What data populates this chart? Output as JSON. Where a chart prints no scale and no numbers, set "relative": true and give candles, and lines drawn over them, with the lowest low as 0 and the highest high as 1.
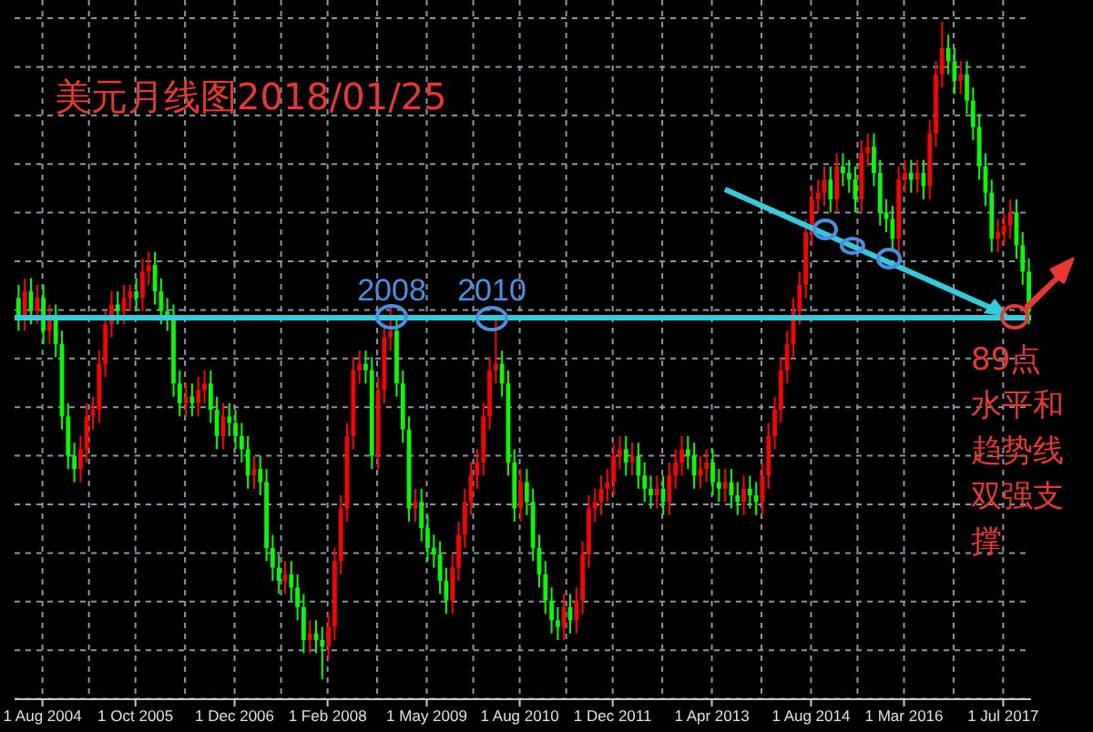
{
  "chart_data": {
    "type": "candlestick",
    "title": "美元月线图2018/01/25",
    "relative": true,
    "grid": true,
    "colors": [
      "#00ff00",
      "#ff0000",
      "#00ff00",
      "#ff0000",
      "#00ff00",
      "#ff0000",
      "#00ff00",
      "#00ff00",
      "#00ff00",
      "#00ff00",
      "#ff0000",
      "#ff0000",
      "#ff0000",
      "#ff0000",
      "#ff0000",
      "#ff0000",
      "#00ff00",
      "#ff0000",
      "#ff0000",
      "#00ff00",
      "#ff0000",
      "#ff0000",
      "#00ff00",
      "#00ff00",
      "#00ff00",
      "#00ff00",
      "#00ff00",
      "#ff0000",
      "#00ff00",
      "#ff0000",
      "#ff0000",
      "#00ff00",
      "#00ff00",
      "#ff0000",
      "#00ff00",
      "#00ff00",
      "#00ff00",
      "#00ff00",
      "#ff0000",
      "#00ff00",
      "#00ff00",
      "#00ff00",
      "#00ff00",
      "#ff0000",
      "#00ff00",
      "#00ff00",
      "#00ff00",
      "#ff0000",
      "#00ff00",
      "#00ff00",
      "#ff0000",
      "#ff0000",
      "#ff0000",
      "#ff0000",
      "#ff0000",
      "#ff0000",
      "#00ff00",
      "#00ff00",
      "#ff0000",
      "#ff0000",
      "#ff0000",
      "#00ff00",
      "#00ff00",
      "#00ff00",
      "#ff0000",
      "#00ff00",
      "#00ff00",
      "#00ff00",
      "#00ff00",
      "#00ff00",
      "#ff0000",
      "#ff0000",
      "#ff0000",
      "#ff0000",
      "#ff0000",
      "#ff0000",
      "#ff0000",
      "#ff0000",
      "#00ff00",
      "#00ff00",
      "#00ff00",
      "#ff0000",
      "#00ff00",
      "#00ff00",
      "#00ff00",
      "#00ff00",
      "#00ff00",
      "#00ff00",
      "#ff0000",
      "#00ff00",
      "#ff0000",
      "#ff0000",
      "#ff0000",
      "#ff0000",
      "#ff0000",
      "#ff0000",
      "#ff0000",
      "#ff0000",
      "#00ff00",
      "#ff0000",
      "#00ff00",
      "#00ff00",
      "#00ff00",
      "#ff0000",
      "#00ff00",
      "#ff0000",
      "#ff0000",
      "#ff0000",
      "#00ff00",
      "#00ff00",
      "#ff0000",
      "#ff0000",
      "#00ff00",
      "#00ff00",
      "#ff0000",
      "#00ff00",
      "#00ff00",
      "#ff0000",
      "#00ff00",
      "#00ff00",
      "#ff0000",
      "#ff0000",
      "#ff0000",
      "#ff0000",
      "#ff0000",
      "#ff0000",
      "#ff0000",
      "#ff0000",
      "#ff0000",
      "#ff0000",
      "#ff0000",
      "#00ff00",
      "#ff0000",
      "#00ff00",
      "#00ff00",
      "#00ff00",
      "#ff0000",
      "#ff0000",
      "#00ff00",
      "#00ff00",
      "#00ff00",
      "#00ff00",
      "#ff0000",
      "#ff0000",
      "#00ff00",
      "#ff0000",
      "#00ff00",
      "#ff0000",
      "#ff0000",
      "#ff0000",
      "#00ff00",
      "#00ff00",
      "#ff0000",
      "#00ff00",
      "#00ff00",
      "#00ff00",
      "#00ff00",
      "#00ff00",
      "#ff0000",
      "#ff0000",
      "#ff0000",
      "#00ff00",
      "#00ff00",
      "#00ff00"
    ],
    "ref_lines": [
      {
        "axis": "y",
        "value": 0.55,
        "color": "#33ccdd"
      }
    ],
    "annotations": [
      "2008",
      "2010",
      "89点水平和趋势线双强支撑"
    ],
    "categories": [
      null,
      null,
      null,
      null,
      "1 Aug 2004",
      null,
      null,
      null,
      null,
      null,
      null,
      null,
      null,
      null,
      null,
      null,
      null,
      null,
      null,
      "1 Oct 2005",
      null,
      null,
      null,
      null,
      null,
      null,
      null,
      null,
      null,
      null,
      null,
      null,
      null,
      null,
      null,
      "1 Dec 2006",
      null,
      null,
      null,
      null,
      null,
      null,
      null,
      null,
      null,
      null,
      null,
      null,
      null,
      null,
      "1 Feb 2008",
      null,
      null,
      null,
      null,
      null,
      null,
      null,
      null,
      null,
      null,
      null,
      null,
      null,
      null,
      null,
      "1 May 2009",
      null,
      null,
      null,
      null,
      null,
      null,
      null,
      null,
      null,
      null,
      null,
      null,
      null,
      null,
      "1 Aug 2010",
      null,
      null,
      null,
      null,
      null,
      null,
      null,
      null,
      null,
      null,
      null,
      null,
      null,
      null,
      "1 Dec 2011",
      null,
      null,
      null,
      null,
      null,
      null,
      null,
      null,
      null,
      null,
      null,
      null,
      null,
      null,
      null,
      "1 Apr 2013",
      null,
      null,
      null,
      null,
      null,
      null,
      null,
      null,
      null,
      null,
      null,
      null,
      null,
      null,
      null,
      "1 Aug 2014",
      null,
      null,
      null,
      null,
      null,
      null,
      null,
      null,
      null,
      null,
      null,
      null,
      null,
      null,
      "1 Mar 2016",
      null,
      null,
      null,
      null,
      null,
      null,
      null,
      null,
      null,
      null,
      null,
      null,
      null,
      null,
      null,
      "1 Jul 2017",
      null,
      null,
      null,
      null
    ],
    "ohlc": [
      [
        0.58,
        0.6,
        0.53,
        0.55
      ],
      [
        0.55,
        0.61,
        0.53,
        0.59
      ],
      [
        0.59,
        0.61,
        0.54,
        0.56
      ],
      [
        0.56,
        0.6,
        0.54,
        0.58
      ],
      [
        0.58,
        0.6,
        0.51,
        0.53
      ],
      [
        0.53,
        0.57,
        0.51,
        0.55
      ],
      [
        0.55,
        0.57,
        0.49,
        0.51
      ],
      [
        0.51,
        0.53,
        0.38,
        0.4
      ],
      [
        0.4,
        0.42,
        0.32,
        0.34
      ],
      [
        0.34,
        0.36,
        0.3,
        0.32
      ],
      [
        0.32,
        0.37,
        0.3,
        0.35
      ],
      [
        0.35,
        0.42,
        0.33,
        0.4
      ],
      [
        0.4,
        0.43,
        0.38,
        0.41
      ],
      [
        0.41,
        0.5,
        0.39,
        0.48
      ],
      [
        0.48,
        0.56,
        0.46,
        0.54
      ],
      [
        0.54,
        0.59,
        0.52,
        0.57
      ],
      [
        0.57,
        0.59,
        0.54,
        0.56
      ],
      [
        0.56,
        0.6,
        0.54,
        0.58
      ],
      [
        0.58,
        0.6,
        0.56,
        0.59
      ],
      [
        0.59,
        0.61,
        0.56,
        0.58
      ],
      [
        0.58,
        0.64,
        0.56,
        0.62
      ],
      [
        0.62,
        0.65,
        0.6,
        0.63
      ],
      [
        0.63,
        0.65,
        0.57,
        0.59
      ],
      [
        0.59,
        0.61,
        0.54,
        0.56
      ],
      [
        0.56,
        0.58,
        0.53,
        0.55
      ],
      [
        0.55,
        0.57,
        0.43,
        0.45
      ],
      [
        0.45,
        0.47,
        0.4,
        0.42
      ],
      [
        0.42,
        0.45,
        0.4,
        0.43
      ],
      [
        0.43,
        0.45,
        0.4,
        0.42
      ],
      [
        0.42,
        0.46,
        0.4,
        0.44
      ],
      [
        0.44,
        0.47,
        0.42,
        0.45
      ],
      [
        0.45,
        0.47,
        0.39,
        0.41
      ],
      [
        0.41,
        0.43,
        0.35,
        0.37
      ],
      [
        0.37,
        0.42,
        0.35,
        0.4
      ],
      [
        0.4,
        0.42,
        0.37,
        0.39
      ],
      [
        0.39,
        0.41,
        0.35,
        0.37
      ],
      [
        0.37,
        0.39,
        0.33,
        0.35
      ],
      [
        0.35,
        0.37,
        0.29,
        0.31
      ],
      [
        0.31,
        0.34,
        0.29,
        0.32
      ],
      [
        0.32,
        0.34,
        0.28,
        0.3
      ],
      [
        0.3,
        0.32,
        0.18,
        0.2
      ],
      [
        0.2,
        0.22,
        0.15,
        0.17
      ],
      [
        0.17,
        0.19,
        0.13,
        0.15
      ],
      [
        0.15,
        0.18,
        0.13,
        0.16
      ],
      [
        0.16,
        0.18,
        0.12,
        0.14
      ],
      [
        0.14,
        0.16,
        0.09,
        0.11
      ],
      [
        0.11,
        0.13,
        0.04,
        0.06
      ],
      [
        0.06,
        0.09,
        0.04,
        0.07
      ],
      [
        0.07,
        0.09,
        0.04,
        0.06
      ],
      [
        0.06,
        0.08,
        0,
        0.05
      ],
      [
        0.05,
        0.1,
        0.03,
        0.08
      ],
      [
        0.08,
        0.2,
        0.06,
        0.18
      ],
      [
        0.18,
        0.28,
        0.16,
        0.26
      ],
      [
        0.26,
        0.39,
        0.24,
        0.37
      ],
      [
        0.37,
        0.49,
        0.35,
        0.47
      ],
      [
        0.47,
        0.5,
        0.45,
        0.48
      ],
      [
        0.48,
        0.5,
        0.45,
        0.47
      ],
      [
        0.47,
        0.49,
        0.32,
        0.34
      ],
      [
        0.34,
        0.46,
        0.32,
        0.44
      ],
      [
        0.44,
        0.54,
        0.42,
        0.52
      ],
      [
        0.52,
        0.57,
        0.5,
        0.53
      ],
      [
        0.53,
        0.55,
        0.43,
        0.45
      ],
      [
        0.45,
        0.47,
        0.36,
        0.38
      ],
      [
        0.38,
        0.4,
        0.24,
        0.26
      ],
      [
        0.26,
        0.29,
        0.24,
        0.27
      ],
      [
        0.27,
        0.29,
        0.21,
        0.23
      ],
      [
        0.23,
        0.25,
        0.18,
        0.2
      ],
      [
        0.2,
        0.22,
        0.17,
        0.19
      ],
      [
        0.19,
        0.21,
        0.13,
        0.15
      ],
      [
        0.15,
        0.17,
        0.1,
        0.12
      ],
      [
        0.12,
        0.19,
        0.1,
        0.17
      ],
      [
        0.17,
        0.24,
        0.15,
        0.22
      ],
      [
        0.22,
        0.29,
        0.2,
        0.27
      ],
      [
        0.27,
        0.33,
        0.25,
        0.31
      ],
      [
        0.31,
        0.35,
        0.29,
        0.33
      ],
      [
        0.33,
        0.42,
        0.31,
        0.4
      ],
      [
        0.4,
        0.49,
        0.38,
        0.47
      ],
      [
        0.47,
        0.55,
        0.45,
        0.48
      ],
      [
        0.48,
        0.5,
        0.43,
        0.45
      ],
      [
        0.45,
        0.47,
        0.31,
        0.33
      ],
      [
        0.33,
        0.35,
        0.24,
        0.26
      ],
      [
        0.26,
        0.32,
        0.24,
        0.3
      ],
      [
        0.3,
        0.32,
        0.25,
        0.27
      ],
      [
        0.27,
        0.29,
        0.18,
        0.2
      ],
      [
        0.2,
        0.22,
        0.14,
        0.16
      ],
      [
        0.16,
        0.18,
        0.1,
        0.12
      ],
      [
        0.12,
        0.14,
        0.07,
        0.09
      ],
      [
        0.09,
        0.11,
        0.06,
        0.08
      ],
      [
        0.08,
        0.13,
        0.06,
        0.11
      ],
      [
        0.11,
        0.13,
        0.07,
        0.09
      ],
      [
        0.09,
        0.14,
        0.07,
        0.12
      ],
      [
        0.12,
        0.21,
        0.1,
        0.19
      ],
      [
        0.19,
        0.28,
        0.17,
        0.26
      ],
      [
        0.26,
        0.29,
        0.24,
        0.27
      ],
      [
        0.27,
        0.31,
        0.25,
        0.29
      ],
      [
        0.29,
        0.32,
        0.27,
        0.3
      ],
      [
        0.3,
        0.36,
        0.28,
        0.34
      ],
      [
        0.34,
        0.37,
        0.32,
        0.35
      ],
      [
        0.35,
        0.37,
        0.31,
        0.33
      ],
      [
        0.33,
        0.36,
        0.31,
        0.34
      ],
      [
        0.34,
        0.36,
        0.29,
        0.31
      ],
      [
        0.31,
        0.33,
        0.27,
        0.29
      ],
      [
        0.29,
        0.31,
        0.26,
        0.28
      ],
      [
        0.28,
        0.31,
        0.26,
        0.29
      ],
      [
        0.29,
        0.31,
        0.25,
        0.27
      ],
      [
        0.27,
        0.33,
        0.25,
        0.31
      ],
      [
        0.31,
        0.35,
        0.29,
        0.33
      ],
      [
        0.33,
        0.37,
        0.31,
        0.35
      ],
      [
        0.35,
        0.37,
        0.32,
        0.34
      ],
      [
        0.34,
        0.36,
        0.29,
        0.31
      ],
      [
        0.31,
        0.34,
        0.29,
        0.32
      ],
      [
        0.32,
        0.35,
        0.3,
        0.33
      ],
      [
        0.33,
        0.35,
        0.28,
        0.3
      ],
      [
        0.3,
        0.32,
        0.27,
        0.29
      ],
      [
        0.29,
        0.32,
        0.27,
        0.3
      ],
      [
        0.3,
        0.32,
        0.26,
        0.28
      ],
      [
        0.28,
        0.3,
        0.25,
        0.27
      ],
      [
        0.27,
        0.31,
        0.25,
        0.29
      ],
      [
        0.29,
        0.31,
        0.26,
        0.28
      ],
      [
        0.28,
        0.3,
        0.25,
        0.27
      ],
      [
        0.27,
        0.33,
        0.25,
        0.31
      ],
      [
        0.31,
        0.39,
        0.29,
        0.37
      ],
      [
        0.37,
        0.43,
        0.35,
        0.41
      ],
      [
        0.41,
        0.49,
        0.39,
        0.47
      ],
      [
        0.47,
        0.53,
        0.45,
        0.51
      ],
      [
        0.51,
        0.58,
        0.49,
        0.56
      ],
      [
        0.56,
        0.62,
        0.54,
        0.6
      ],
      [
        0.6,
        0.7,
        0.58,
        0.68
      ],
      [
        0.68,
        0.75,
        0.66,
        0.73
      ],
      [
        0.73,
        0.76,
        0.71,
        0.74
      ],
      [
        0.74,
        0.78,
        0.72,
        0.76
      ],
      [
        0.76,
        0.78,
        0.71,
        0.73
      ],
      [
        0.73,
        0.8,
        0.71,
        0.78
      ],
      [
        0.78,
        0.8,
        0.75,
        0.77
      ],
      [
        0.77,
        0.79,
        0.74,
        0.76
      ],
      [
        0.76,
        0.78,
        0.71,
        0.73
      ],
      [
        0.73,
        0.82,
        0.71,
        0.8
      ],
      [
        0.8,
        0.83,
        0.78,
        0.81
      ],
      [
        0.81,
        0.83,
        0.75,
        0.77
      ],
      [
        0.77,
        0.79,
        0.69,
        0.71
      ],
      [
        0.71,
        0.73,
        0.68,
        0.7
      ],
      [
        0.7,
        0.72,
        0.65,
        0.67
      ],
      [
        0.67,
        0.78,
        0.65,
        0.76
      ],
      [
        0.76,
        0.79,
        0.74,
        0.77
      ],
      [
        0.77,
        0.79,
        0.74,
        0.76
      ],
      [
        0.76,
        0.79,
        0.74,
        0.77
      ],
      [
        0.77,
        0.79,
        0.73,
        0.75
      ],
      [
        0.75,
        0.85,
        0.73,
        0.83
      ],
      [
        0.83,
        0.94,
        0.81,
        0.92
      ],
      [
        0.92,
        1,
        0.9,
        0.96
      ],
      [
        0.96,
        0.98,
        0.92,
        0.94
      ],
      [
        0.94,
        0.96,
        0.89,
        0.91
      ],
      [
        0.91,
        0.94,
        0.89,
        0.92
      ],
      [
        0.92,
        0.94,
        0.86,
        0.88
      ],
      [
        0.88,
        0.9,
        0.82,
        0.84
      ],
      [
        0.84,
        0.86,
        0.76,
        0.78
      ],
      [
        0.78,
        0.8,
        0.72,
        0.74
      ],
      [
        0.74,
        0.76,
        0.65,
        0.67
      ],
      [
        0.67,
        0.7,
        0.65,
        0.68
      ],
      [
        0.68,
        0.71,
        0.66,
        0.69
      ],
      [
        0.69,
        0.73,
        0.67,
        0.71
      ],
      [
        0.71,
        0.73,
        0.64,
        0.66
      ],
      [
        0.66,
        0.68,
        0.6,
        0.62
      ],
      [
        0.62,
        0.64,
        0.54,
        0.56
      ]
    ]
  }
}
